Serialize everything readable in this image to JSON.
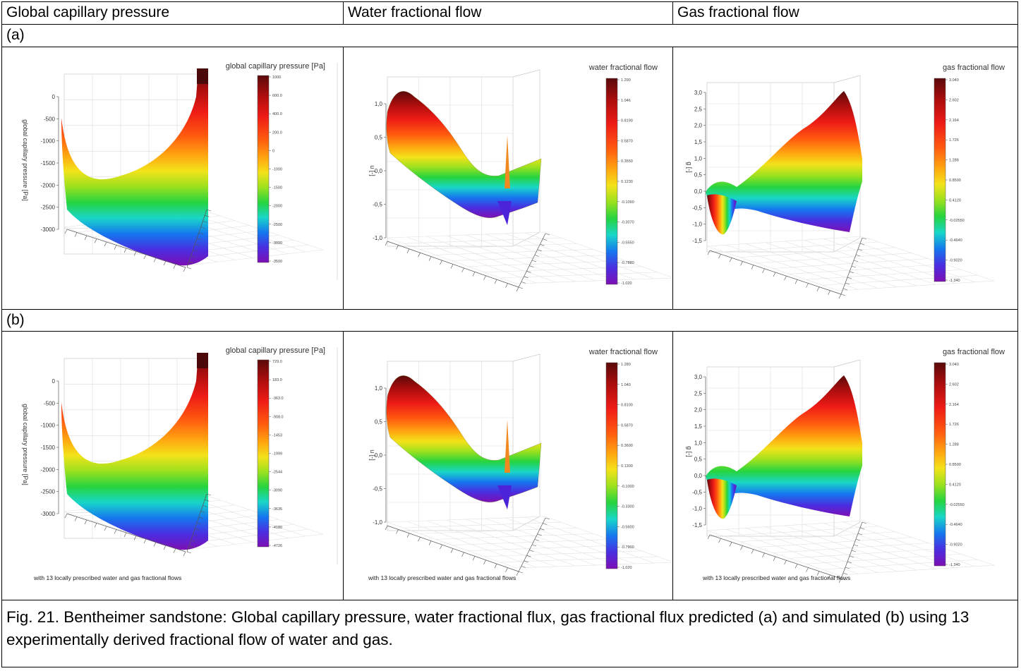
{
  "columns": [
    "Global capillary pressure",
    "Water fractional flow",
    "Gas fractional flow"
  ],
  "rows": [
    {
      "label": "(a)",
      "note": "",
      "panels": [
        {
          "title": "global capillary pressure [Pa]",
          "axis": "global capillary pressure [Pa]",
          "yticks": [
            "0",
            "-500",
            "-1000",
            "-1500",
            "-2000",
            "-2500",
            "-3000"
          ],
          "cb": [
            "1000",
            "600.0",
            "400.0",
            "200.0",
            "0",
            "-1000",
            "-1500",
            "-2000",
            "-2500",
            "-3000",
            "-3500"
          ]
        },
        {
          "title": "water fractional flow",
          "axis": "u [-]",
          "yticks": [
            "1,0",
            "0,5",
            "0,0",
            "-0,5",
            "-1,0"
          ],
          "cb": [
            "1.290",
            "1.046",
            "0.8190",
            "0.5870",
            "0.3550",
            "0.1230",
            "-0.1090",
            "-0.3070",
            "-0.5550",
            "-0.7880",
            "-1.020"
          ]
        },
        {
          "title": "gas fractional flow",
          "axis": "g [-]",
          "yticks": [
            "3,0",
            "2,5",
            "2,0",
            "1,5",
            "1,0",
            "0,5",
            "0,0",
            "-0,5",
            "-1,0",
            "-1,5"
          ],
          "cb": [
            "3.040",
            "2.602",
            "2.164",
            "1.726",
            "1.288",
            "0.8500",
            "0.4120",
            "-0.02550",
            "-0.4640",
            "-0.9020",
            "-1.340"
          ]
        }
      ]
    },
    {
      "label": "(b)",
      "note": "with 13 locally prescribed water and gas fractional flows",
      "panels": [
        {
          "title": "global capillary pressure [Pa]",
          "axis": "global capillary pressure [Pa]",
          "yticks": [
            "0",
            "-500",
            "-1000",
            "-1500",
            "-2000",
            "-2500",
            "-3000"
          ],
          "cb": [
            "729.0",
            "183.0",
            "-363.0",
            "-908.0",
            "-1453",
            "-1999",
            "-2544",
            "-3090",
            "-3635",
            "-4180",
            "-4726"
          ]
        },
        {
          "title": "water fractional flow",
          "axis": "u [-]",
          "yticks": [
            "1,0",
            "0,5",
            "0,0",
            "-0,5",
            "-1,0"
          ],
          "cb": [
            "1.280",
            "1.040",
            "0.8100",
            "0.5870",
            "0.3600",
            "0.1300",
            "-0.1000",
            "-0.3300",
            "-0.5600",
            "-0.7900",
            "-1.020"
          ]
        },
        {
          "title": "gas fractional flow",
          "axis": "g [-]",
          "yticks": [
            "3,0",
            "2,5",
            "2,0",
            "1,5",
            "1,0",
            "0,5",
            "0,0",
            "-0,5",
            "-1,0",
            "-1,5"
          ],
          "cb": [
            "3.040",
            "2.602",
            "2.164",
            "1.726",
            "1.288",
            "0.8500",
            "0.4120",
            "-0.02550",
            "-0.4640",
            "-0.9020",
            "-1.340"
          ]
        }
      ]
    }
  ],
  "caption": "Fig. 21. Bentheimer sandstone: Global capillary pressure, water fractional flux, gas fractional flux predicted (a) and simulated (b) using 13 experimentally derived fractional flow of water and gas."
}
